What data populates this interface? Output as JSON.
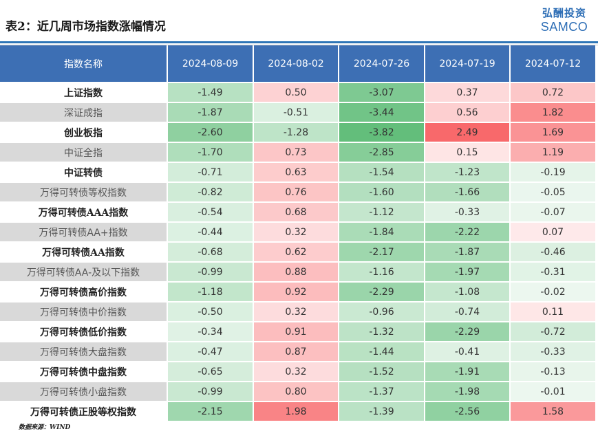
{
  "title": "表2：近几周市场指数涨幅情况",
  "logo": {
    "cn": "弘酬投资",
    "en": "SAMCO"
  },
  "source": "数据来源：WIND",
  "colors": {
    "header_bg": "#3d6fb4",
    "header_text": "#ffffff",
    "positive": "#f8696b",
    "negative": "#63be7b",
    "plain_row_bg": "#d9d9d9"
  },
  "chart_data": {
    "type": "table",
    "title": "表2：近几周市场指数涨幅情况",
    "columns": [
      "指数名称",
      "2024-08-09",
      "2024-08-02",
      "2024-07-26",
      "2024-07-19",
      "2024-07-12"
    ],
    "rows": [
      {
        "name": "上证指数",
        "bold": true,
        "values": [
          "-1.49",
          "0.50",
          "-3.07",
          "0.37",
          "0.72"
        ]
      },
      {
        "name": "深证成指",
        "bold": false,
        "values": [
          "-1.87",
          "-0.51",
          "-3.44",
          "0.56",
          "1.82"
        ]
      },
      {
        "name": "创业板指",
        "bold": true,
        "values": [
          "-2.60",
          "-1.28",
          "-3.82",
          "2.49",
          "1.69"
        ]
      },
      {
        "name": "中证全指",
        "bold": false,
        "values": [
          "-1.70",
          "0.73",
          "-2.85",
          "0.15",
          "1.19"
        ]
      },
      {
        "name": "中证转债",
        "bold": true,
        "values": [
          "-0.71",
          "0.63",
          "-1.54",
          "-1.23",
          "-0.19"
        ]
      },
      {
        "name": "万得可转债等权指数",
        "bold": false,
        "values": [
          "-0.82",
          "0.76",
          "-1.60",
          "-1.66",
          "-0.05"
        ]
      },
      {
        "name": "万得可转债AAA指数",
        "bold": true,
        "values": [
          "-0.54",
          "0.68",
          "-1.12",
          "-0.33",
          "-0.07"
        ]
      },
      {
        "name": "万得可转债AA+指数",
        "bold": false,
        "values": [
          "-0.44",
          "0.32",
          "-1.84",
          "-2.22",
          "0.07"
        ]
      },
      {
        "name": "万得可转债AA指数",
        "bold": true,
        "values": [
          "-0.68",
          "0.62",
          "-2.17",
          "-1.87",
          "-0.46"
        ]
      },
      {
        "name": "万得可转债AA-及以下指数",
        "bold": false,
        "values": [
          "-0.99",
          "0.88",
          "-1.16",
          "-1.97",
          "-0.31"
        ]
      },
      {
        "name": "万得可转债高价指数",
        "bold": true,
        "values": [
          "-1.18",
          "0.92",
          "-2.29",
          "-1.08",
          "-0.02"
        ]
      },
      {
        "name": "万得可转债中价指数",
        "bold": false,
        "values": [
          "-0.50",
          "0.32",
          "-0.96",
          "-0.74",
          "0.11"
        ]
      },
      {
        "name": "万得可转债低价指数",
        "bold": true,
        "values": [
          "-0.34",
          "0.91",
          "-1.32",
          "-2.29",
          "-0.72"
        ]
      },
      {
        "name": "万得可转债大盘指数",
        "bold": false,
        "values": [
          "-0.47",
          "0.87",
          "-1.44",
          "-0.41",
          "-0.33"
        ]
      },
      {
        "name": "万得可转债中盘指数",
        "bold": true,
        "values": [
          "-0.65",
          "0.32",
          "-1.52",
          "-1.91",
          "-0.13"
        ]
      },
      {
        "name": "万得可转债小盘指数",
        "bold": false,
        "values": [
          "-0.99",
          "0.80",
          "-1.37",
          "-1.98",
          "-0.01"
        ]
      },
      {
        "name": "万得可转债正股等权指数",
        "bold": true,
        "values": [
          "-2.15",
          "1.98",
          "-1.39",
          "-2.56",
          "1.58"
        ]
      }
    ]
  }
}
